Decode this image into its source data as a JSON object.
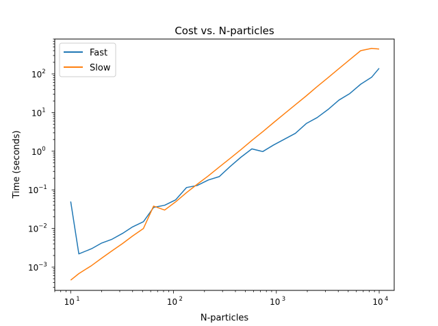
{
  "chart_data": {
    "type": "line",
    "title": "Cost vs. N-particles",
    "xlabel": "N-particles",
    "ylabel": "Time (seconds)",
    "xscale": "log",
    "yscale": "log",
    "xlim": [
      7.0,
      14000
    ],
    "ylim": [
      0.00025,
      800
    ],
    "x_ticks": [
      {
        "base": "10",
        "exp": "1",
        "value": 10
      },
      {
        "base": "10",
        "exp": "2",
        "value": 100
      },
      {
        "base": "10",
        "exp": "3",
        "value": 1000
      },
      {
        "base": "10",
        "exp": "4",
        "value": 10000
      }
    ],
    "y_ticks": [
      {
        "base": "10",
        "exp": "−3",
        "value": 0.001
      },
      {
        "base": "10",
        "exp": "−2",
        "value": 0.01
      },
      {
        "base": "10",
        "exp": "−1",
        "value": 0.1
      },
      {
        "base": "10",
        "exp": "0",
        "value": 1
      },
      {
        "base": "10",
        "exp": "1",
        "value": 10
      },
      {
        "base": "10",
        "exp": "2",
        "value": 100
      }
    ],
    "grid": false,
    "legend_position": "top-left",
    "series": [
      {
        "name": "Fast",
        "color": "#1f77b4",
        "x": [
          10,
          12,
          16,
          20,
          25,
          32,
          40,
          51,
          64,
          82,
          105,
          134,
          170,
          218,
          278,
          355,
          453,
          578,
          737,
          941,
          1200,
          1532,
          1955,
          2494,
          3183,
          4061,
          5182,
          6612,
          8437,
          10000
        ],
        "y": [
          0.05,
          0.0022,
          0.003,
          0.0042,
          0.0052,
          0.0075,
          0.011,
          0.015,
          0.035,
          0.04,
          0.055,
          0.115,
          0.13,
          0.18,
          0.22,
          0.4,
          0.7,
          1.15,
          0.98,
          1.45,
          2.05,
          2.9,
          5.2,
          7.4,
          12,
          21,
          31,
          54,
          82,
          140
        ]
      },
      {
        "name": "Slow",
        "color": "#ff7f0e",
        "x": [
          10,
          12,
          16,
          20,
          25,
          32,
          40,
          51,
          64,
          82,
          105,
          134,
          170,
          218,
          278,
          355,
          453,
          578,
          737,
          941,
          1200,
          1532,
          1955,
          2494,
          3183,
          4061,
          5182,
          6612,
          8437,
          10000
        ],
        "y": [
          0.00046,
          0.00068,
          0.0011,
          0.0017,
          0.0026,
          0.0041,
          0.0064,
          0.01,
          0.038,
          0.03,
          0.049,
          0.085,
          0.14,
          0.23,
          0.39,
          0.65,
          1.1,
          1.9,
          3.2,
          5.5,
          9.4,
          16,
          27,
          47,
          80,
          137,
          234,
          400,
          460,
          440
        ]
      }
    ]
  }
}
